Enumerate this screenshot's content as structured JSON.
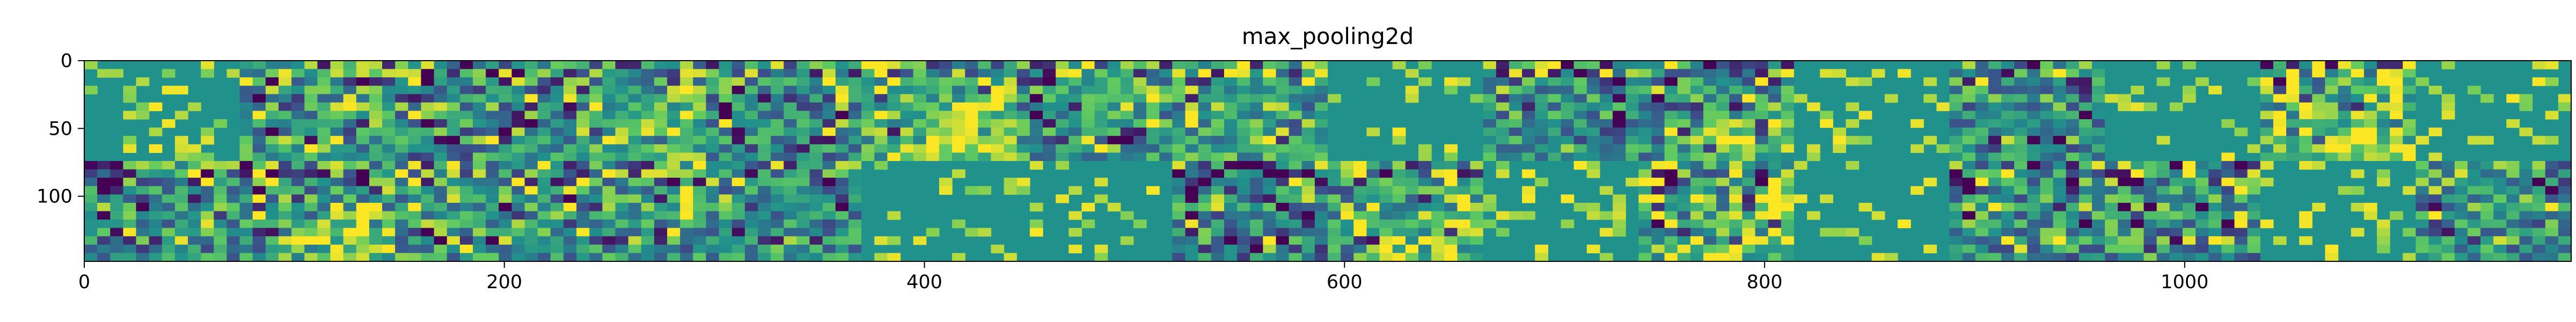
{
  "chart_data": {
    "type": "heatmap",
    "title": "max_pooling2d",
    "xlabel": "",
    "ylabel": "",
    "xlim": [
      0,
      1184
    ],
    "ylim": [
      148,
      0
    ],
    "x_ticks": [
      0,
      200,
      400,
      600,
      800,
      1000
    ],
    "y_ticks": [
      0,
      50,
      100
    ],
    "grid": false,
    "colormap": "viridis",
    "grid_layout": {
      "rows": 2,
      "cols": 16,
      "tile_size": 74
    },
    "tiles": [
      {
        "row": 0,
        "col": 0,
        "mean": 0.5,
        "contrast": 0.55,
        "sparse": true,
        "bright": false
      },
      {
        "row": 0,
        "col": 1,
        "mean": 0.55,
        "contrast": 0.6,
        "sparse": false,
        "bright": false
      },
      {
        "row": 0,
        "col": 2,
        "mean": 0.48,
        "contrast": 0.7,
        "sparse": false,
        "bright": false
      },
      {
        "row": 0,
        "col": 3,
        "mean": 0.52,
        "contrast": 0.55,
        "sparse": false,
        "bright": true
      },
      {
        "row": 0,
        "col": 4,
        "mean": 0.45,
        "contrast": 0.65,
        "sparse": false,
        "bright": false
      },
      {
        "row": 0,
        "col": 5,
        "mean": 0.62,
        "contrast": 0.6,
        "sparse": false,
        "bright": true
      },
      {
        "row": 0,
        "col": 6,
        "mean": 0.55,
        "contrast": 0.6,
        "sparse": false,
        "bright": false
      },
      {
        "row": 0,
        "col": 7,
        "mean": 0.58,
        "contrast": 0.55,
        "sparse": false,
        "bright": false
      },
      {
        "row": 0,
        "col": 8,
        "mean": 0.5,
        "contrast": 0.45,
        "sparse": true,
        "bright": false
      },
      {
        "row": 0,
        "col": 9,
        "mean": 0.5,
        "contrast": 0.6,
        "sparse": false,
        "bright": false
      },
      {
        "row": 0,
        "col": 10,
        "mean": 0.52,
        "contrast": 0.65,
        "sparse": false,
        "bright": true
      },
      {
        "row": 0,
        "col": 11,
        "mean": 0.5,
        "contrast": 0.55,
        "sparse": true,
        "bright": false
      },
      {
        "row": 0,
        "col": 12,
        "mean": 0.48,
        "contrast": 0.6,
        "sparse": false,
        "bright": false
      },
      {
        "row": 0,
        "col": 13,
        "mean": 0.5,
        "contrast": 0.45,
        "sparse": true,
        "bright": false
      },
      {
        "row": 0,
        "col": 14,
        "mean": 0.6,
        "contrast": 0.75,
        "sparse": false,
        "bright": true
      },
      {
        "row": 0,
        "col": 15,
        "mean": 0.5,
        "contrast": 0.3,
        "sparse": true,
        "bright": false
      },
      {
        "row": 1,
        "col": 0,
        "mean": 0.48,
        "contrast": 0.65,
        "sparse": false,
        "bright": false
      },
      {
        "row": 1,
        "col": 1,
        "mean": 0.52,
        "contrast": 0.7,
        "sparse": false,
        "bright": true
      },
      {
        "row": 1,
        "col": 2,
        "mean": 0.55,
        "contrast": 0.65,
        "sparse": false,
        "bright": false
      },
      {
        "row": 1,
        "col": 3,
        "mean": 0.52,
        "contrast": 0.65,
        "sparse": false,
        "bright": false
      },
      {
        "row": 1,
        "col": 4,
        "mean": 0.5,
        "contrast": 0.55,
        "sparse": false,
        "bright": false
      },
      {
        "row": 1,
        "col": 5,
        "mean": 0.5,
        "contrast": 0.45,
        "sparse": true,
        "bright": false
      },
      {
        "row": 1,
        "col": 6,
        "mean": 0.5,
        "contrast": 0.5,
        "sparse": true,
        "bright": false
      },
      {
        "row": 1,
        "col": 7,
        "mean": 0.45,
        "contrast": 0.7,
        "sparse": false,
        "bright": false
      },
      {
        "row": 1,
        "col": 8,
        "mean": 0.55,
        "contrast": 0.7,
        "sparse": false,
        "bright": true
      },
      {
        "row": 1,
        "col": 9,
        "mean": 0.5,
        "contrast": 0.45,
        "sparse": true,
        "bright": false
      },
      {
        "row": 1,
        "col": 10,
        "mean": 0.6,
        "contrast": 0.7,
        "sparse": false,
        "bright": true
      },
      {
        "row": 1,
        "col": 11,
        "mean": 0.5,
        "contrast": 0.45,
        "sparse": true,
        "bright": false
      },
      {
        "row": 1,
        "col": 12,
        "mean": 0.48,
        "contrast": 0.65,
        "sparse": false,
        "bright": false
      },
      {
        "row": 1,
        "col": 13,
        "mean": 0.5,
        "contrast": 0.7,
        "sparse": false,
        "bright": false
      },
      {
        "row": 1,
        "col": 14,
        "mean": 0.5,
        "contrast": 0.25,
        "sparse": true,
        "bright": false
      },
      {
        "row": 1,
        "col": 15,
        "mean": 0.52,
        "contrast": 0.55,
        "sparse": false,
        "bright": false
      }
    ],
    "colors": {
      "background": "#ffffff",
      "text": "#000000",
      "axis": "#000000",
      "colormap_stops": [
        "#440154",
        "#3b528b",
        "#21918c",
        "#5ec962",
        "#fde725"
      ]
    }
  }
}
